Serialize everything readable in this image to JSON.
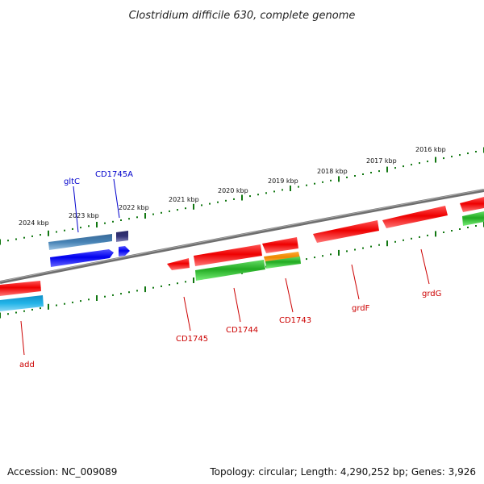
{
  "title": "Clostridium difficile 630, complete genome",
  "footer": {
    "accession": "Accession: NC_009089",
    "topology": "Topology: circular; Length: 4,290,252 bp; Genes: 3,926"
  },
  "colors": {
    "forward_gene": "#ee0000",
    "reverse_gene": "#0000ee",
    "cds_green": "#22bb22",
    "steelblue_feature": "#4682b4",
    "skyblue_feature": "#1eaadd",
    "orange_feature": "#ee8800",
    "navy_feature": "#333377",
    "backbone": "#777777",
    "tick": "#117711",
    "label_red": "#cc0000",
    "label_blue": "#0000cc"
  },
  "ruler": {
    "labels": [
      "2024 kbp",
      "2023 kbp",
      "2022 kbp",
      "2021 kbp",
      "2020 kbp",
      "2019 kbp",
      "2018 kbp",
      "2017 kbp",
      "2016 kbp"
    ]
  },
  "genes": [
    {
      "label": "add",
      "label_color": "label_red"
    },
    {
      "label": "gltC",
      "label_color": "label_blue"
    },
    {
      "label": "CD1745A",
      "label_color": "label_blue"
    },
    {
      "label": "CD1745",
      "label_color": "label_red"
    },
    {
      "label": "CD1744",
      "label_color": "label_red"
    },
    {
      "label": "CD1743",
      "label_color": "label_red"
    },
    {
      "label": "grdF",
      "label_color": "label_red"
    },
    {
      "label": "grdG",
      "label_color": "label_red"
    }
  ]
}
